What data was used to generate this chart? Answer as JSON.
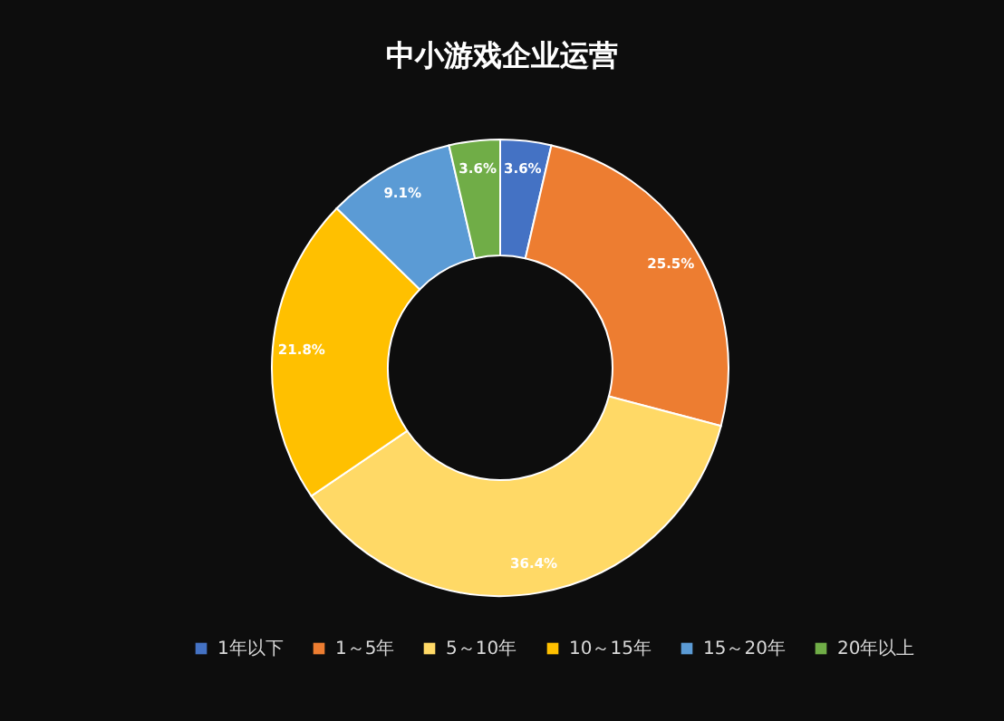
{
  "chart_data": {
    "type": "donut",
    "title": "中小游戏企业运营",
    "categories": [
      "1年以下",
      "1～5年",
      "5～10年",
      "10～15年",
      "15～20年",
      "20年以上"
    ],
    "values": [
      3.6,
      25.5,
      36.4,
      21.8,
      9.1,
      3.6
    ],
    "value_labels": [
      "3.6%",
      "25.5%",
      "36.4%",
      "21.8%",
      "9.1%",
      "3.6%"
    ],
    "colors": [
      "#4472c4",
      "#ed7d31",
      "#ffd966",
      "#ffc000",
      "#5b9bd5",
      "#70ad47"
    ],
    "legend": "bottom"
  }
}
